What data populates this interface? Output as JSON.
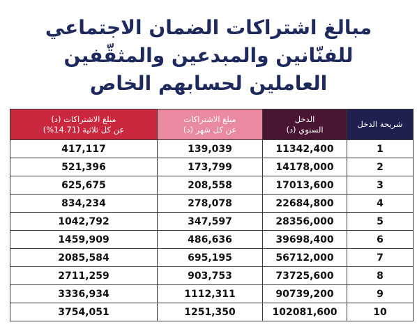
{
  "header": {
    "title": [
      "مبالغ اشتراكات الضمان الاجتماعي",
      "للفنّانين والمبدعين والمثقّفين",
      "العاملين لحسابهم الخاص"
    ]
  },
  "table": {
    "columns": [
      {
        "lines": [
          "شريحة الدخل"
        ],
        "color": "#1f2050"
      },
      {
        "lines": [
          "الدخل",
          "السنوي (د)"
        ],
        "color": "#4a1535"
      },
      {
        "lines": [
          "مبلغ الاشتراكات",
          "عن كل شهر (د)"
        ],
        "color": "#e98aa1"
      },
      {
        "lines": [
          "مبلغ الاشتراكات (د)",
          "عن كل ثلاثية (14.71%)"
        ],
        "color": "#c9283e"
      }
    ],
    "rows": [
      [
        "1",
        "11342,400",
        "139,039",
        "417,117"
      ],
      [
        "2",
        "14178,000",
        "173,799",
        "521,396"
      ],
      [
        "3",
        "17013,600",
        "208,558",
        "625,675"
      ],
      [
        "4",
        "22684,800",
        "278,078",
        "834,234"
      ],
      [
        "5",
        "28356,000",
        "347,597",
        "1042,792"
      ],
      [
        "6",
        "39698,400",
        "486,636",
        "1459,909"
      ],
      [
        "7",
        "56712,000",
        "695,195",
        "2085,584"
      ],
      [
        "8",
        "73725,600",
        "903,753",
        "2711,259"
      ],
      [
        "9",
        "90739,200",
        "1112,311",
        "3336,934"
      ],
      [
        "10",
        "102081,600",
        "1251,350",
        "3754,051"
      ]
    ]
  }
}
